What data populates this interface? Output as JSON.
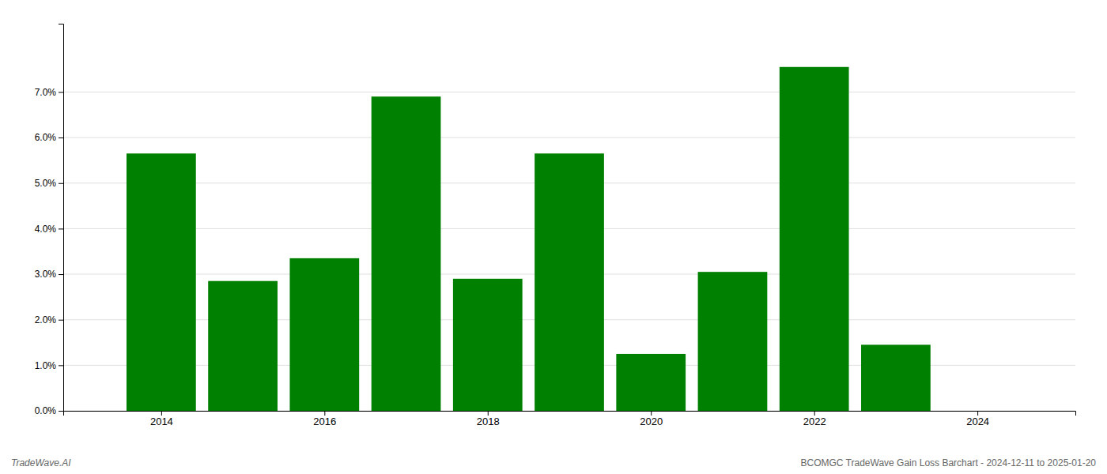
{
  "chart_data": {
    "type": "bar",
    "x": [
      2014,
      2015,
      2016,
      2017,
      2018,
      2019,
      2020,
      2021,
      2022,
      2023,
      2024
    ],
    "values": [
      0.0565,
      0.0285,
      0.0335,
      0.069,
      0.029,
      0.0565,
      0.0125,
      0.0305,
      0.0755,
      0.0145,
      0.0
    ],
    "color": "#008000",
    "xlim": [
      2012.8,
      2025.2
    ],
    "xticks": [
      2014,
      2016,
      2018,
      2020,
      2022,
      2024
    ],
    "ylim": [
      0,
      0.085
    ],
    "yticks": [
      {
        "value": 0.0,
        "label": "0.0%"
      },
      {
        "value": 0.01,
        "label": "1.0%"
      },
      {
        "value": 0.02,
        "label": "2.0%"
      },
      {
        "value": 0.03,
        "label": "3.0%"
      },
      {
        "value": 0.04,
        "label": "4.0%"
      },
      {
        "value": 0.05,
        "label": "5.0%"
      },
      {
        "value": 0.06,
        "label": "6.0%"
      },
      {
        "value": 0.07,
        "label": "7.0%"
      }
    ],
    "grid": true,
    "annotations": [
      "TradeWave.AI",
      "BCOMGC TradeWave Gain Loss Barchart - 2024-12-11 to 2025-01-20"
    ]
  }
}
